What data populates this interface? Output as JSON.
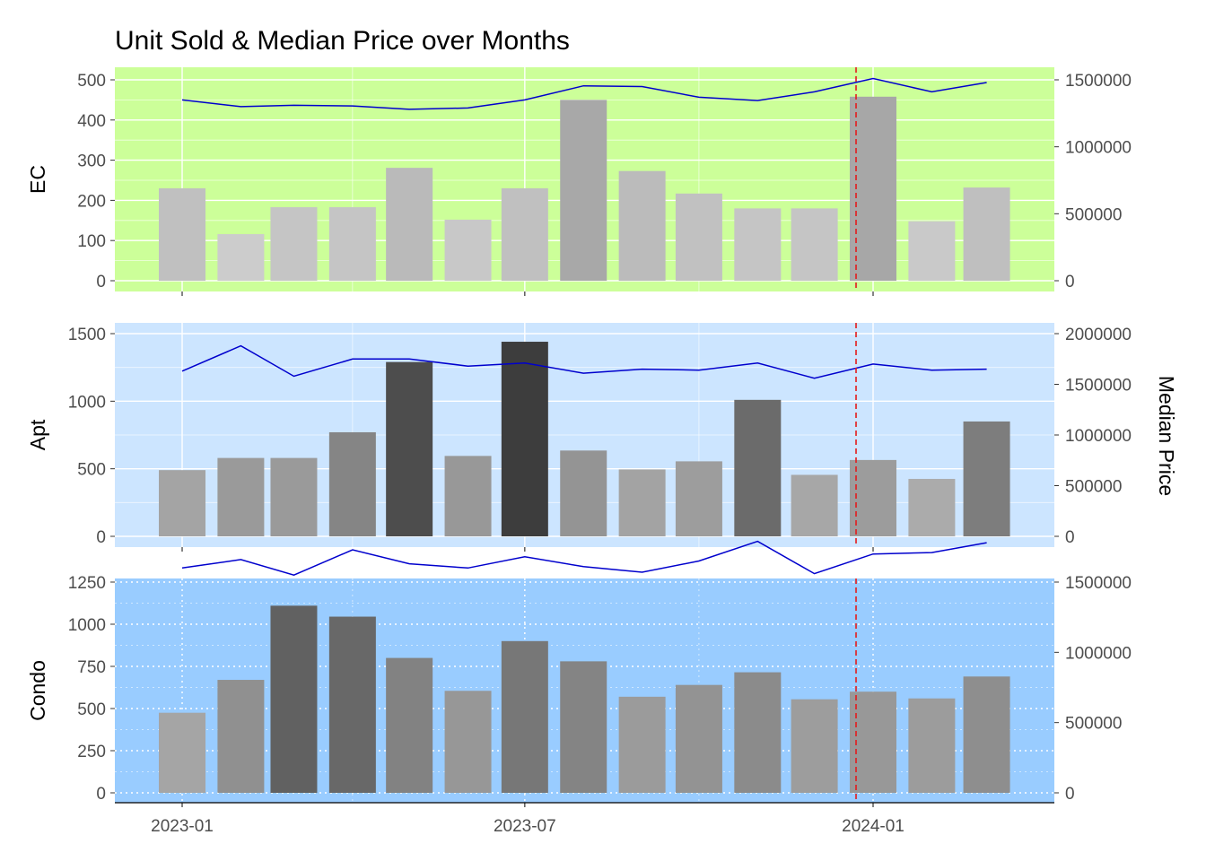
{
  "chart_data": {
    "type": "bar",
    "title": "Unit Sold & Median Price over Months",
    "secondary_axis_label": "Median Price",
    "months": [
      "2023-01",
      "2023-02",
      "2023-03",
      "2023-04",
      "2023-05",
      "2023-06",
      "2023-07",
      "2023-08",
      "2023-09",
      "2023-10",
      "2023-11",
      "2023-12",
      "2024-01",
      "2024-02",
      "2024-03"
    ],
    "x_tick_labels": [
      "2023-01",
      "2023-07",
      "2024-01"
    ],
    "reference_line": {
      "date": "2023-12-23",
      "color": "#e41a1c",
      "style": "dashed"
    },
    "line_color": "#0000cd",
    "panels": [
      {
        "name": "EC",
        "background": "#ccff99",
        "grid_style": "solid",
        "units_sold": [
          230,
          116,
          183,
          183,
          281,
          152,
          230,
          450,
          273,
          217,
          180,
          180,
          458,
          148,
          232
        ],
        "median_price": [
          1350000,
          1300000,
          1310000,
          1305000,
          1280000,
          1290000,
          1350000,
          1455000,
          1450000,
          1370000,
          1345000,
          1410000,
          1510000,
          1410000,
          1480000
        ],
        "y_ticks": [
          0,
          100,
          200,
          300,
          400,
          500
        ],
        "y2_ticks": [
          "0",
          "500000",
          "1000000",
          "1500000"
        ],
        "ylim": [
          0,
          500
        ],
        "y2lim": [
          0,
          1500000
        ]
      },
      {
        "name": "Apt",
        "background": "#cce5ff",
        "grid_style": "solid",
        "units_sold": [
          490,
          580,
          580,
          770,
          1290,
          595,
          1440,
          635,
          495,
          555,
          1010,
          455,
          565,
          425,
          850
        ],
        "median_price": [
          1630000,
          1880000,
          1580000,
          1750000,
          1750000,
          1680000,
          1710000,
          1610000,
          1650000,
          1640000,
          1710000,
          1560000,
          1700000,
          1640000,
          1650000
        ],
        "y_ticks": [
          0,
          500,
          1000,
          1500
        ],
        "y2_ticks": [
          "0",
          "500000",
          "1000000",
          "1500000",
          "2000000"
        ],
        "ylim": [
          0,
          1500
        ],
        "y2lim": [
          0,
          2000000
        ]
      },
      {
        "name": "Condo",
        "background": "#99ccff",
        "grid_style": "dotted",
        "units_sold": [
          475,
          670,
          1110,
          1045,
          800,
          605,
          900,
          780,
          570,
          640,
          715,
          555,
          600,
          560,
          690
        ],
        "median_price": [
          1600000,
          1660000,
          1550000,
          1730000,
          1630000,
          1600000,
          1680000,
          1610000,
          1570000,
          1650000,
          1790000,
          1560000,
          1700000,
          1710000,
          1780000
        ],
        "y_ticks": [
          0,
          250,
          500,
          750,
          1000,
          1250
        ],
        "y2_ticks": [
          "0",
          "500000",
          "1000000",
          "1500000"
        ],
        "ylim": [
          0,
          1250
        ],
        "y2lim": [
          0,
          1500000
        ]
      }
    ]
  }
}
